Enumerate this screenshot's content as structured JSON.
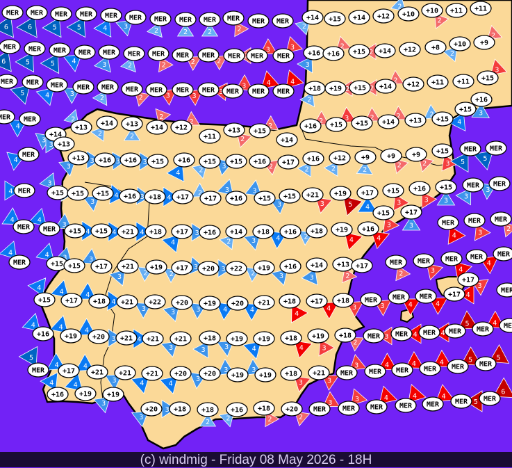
{
  "footer": {
    "credit": "(c) windmig - Friday 08 May 2026 - 18H"
  },
  "colors": {
    "sea": "#7222f6",
    "land": "#fbd998",
    "coast": "#000000",
    "blue": {
      "2": "#66aef4",
      "3": "#3d94ec",
      "4": "#0a7af4",
      "5": "#0064c4",
      "6": "#0058b0"
    },
    "red": {
      "2": "#f46a6a",
      "3": "#f43c3c",
      "4": "#f40000",
      "5": "#c40000",
      "6": "#c40000"
    }
  },
  "legend_note": {
    "sea_label": "MER"
  },
  "stations": [
    [
      "MER",
      6,
      "blue"
    ],
    [
      "MER",
      6,
      "blue"
    ],
    [
      "MER",
      5,
      "blue"
    ],
    [
      "MER",
      5,
      "blue"
    ],
    [
      "MER",
      4,
      "blue"
    ],
    [
      "MER",
      3,
      "blue"
    ],
    [
      "MER",
      2,
      "blue"
    ],
    [
      "MER",
      2,
      "blue"
    ],
    [
      "MER",
      2,
      "blue"
    ],
    [
      "MER",
      2,
      "red"
    ],
    [
      "MER",
      null,
      null
    ],
    [
      "MER",
      null,
      null
    ],
    [
      "+14",
      2,
      "blue"
    ],
    [
      "+15",
      null,
      null
    ],
    [
      "+14",
      null,
      null
    ],
    [
      "+12",
      null,
      null
    ],
    [
      "+10",
      2,
      "blue"
    ],
    [
      "+10",
      2,
      "red"
    ],
    [
      "+11",
      null,
      null
    ],
    [
      "+11",
      null,
      null
    ],
    [
      "MER",
      6,
      "blue"
    ],
    [
      "MER",
      5,
      "blue"
    ],
    [
      "MER",
      5,
      "blue"
    ],
    [
      "MER",
      4,
      "blue"
    ],
    [
      "MER",
      3,
      "blue"
    ],
    [
      "MER",
      2,
      "blue"
    ],
    [
      "MER",
      2,
      "red"
    ],
    [
      "MER",
      2,
      "red"
    ],
    [
      "MER",
      2,
      "red"
    ],
    [
      "MER",
      2,
      "red"
    ],
    [
      "MER",
      3,
      "red"
    ],
    [
      "MER",
      3,
      "red"
    ],
    [
      "+16",
      3,
      "blue"
    ],
    [
      "+16",
      2,
      "red"
    ],
    [
      "+15",
      2,
      "red"
    ],
    [
      "+14",
      null,
      null
    ],
    [
      "+12",
      null,
      null
    ],
    [
      "+8",
      null,
      null
    ],
    [
      "+10",
      2,
      "blue"
    ],
    [
      "+9",
      2,
      "red"
    ],
    [
      "MER",
      null,
      null
    ],
    [
      "MER",
      5,
      "blue"
    ],
    [
      "MER",
      4,
      "blue"
    ],
    [
      "MER",
      3,
      "blue"
    ],
    [
      "MER",
      2,
      "blue"
    ],
    [
      "MER",
      2,
      "red"
    ],
    [
      "MER",
      3,
      "red"
    ],
    [
      "MER",
      3,
      "red"
    ],
    [
      "MER",
      3,
      "red"
    ],
    [
      "MER",
      3,
      "red"
    ],
    [
      "MER",
      4,
      "red"
    ],
    [
      "MER",
      4,
      "red"
    ],
    [
      "+18",
      2,
      "blue"
    ],
    [
      "+19",
      2,
      "red"
    ],
    [
      "+15",
      2,
      "red"
    ],
    [
      "+14",
      2,
      "red"
    ],
    [
      "+12",
      null,
      null
    ],
    [
      "+11",
      null,
      null
    ],
    [
      "+11",
      null,
      null
    ],
    [
      "+15",
      3,
      "red"
    ],
    [
      "+16",
      3,
      "blue"
    ],
    [
      "MER",
      null,
      null
    ],
    [
      "MER",
      4,
      "blue"
    ],
    [
      "+13",
      2,
      "blue"
    ],
    [
      "+14",
      3,
      "blue"
    ],
    [
      "+13",
      3,
      "blue"
    ],
    [
      "+14",
      2,
      "blue"
    ],
    [
      "+13",
      2,
      "blue"
    ],
    [
      "+14",
      2,
      "red"
    ],
    [
      "+12",
      2,
      "red"
    ],
    [
      "+11",
      null,
      null
    ],
    [
      "+13",
      2,
      "red"
    ],
    [
      "+15",
      2,
      "red"
    ],
    [
      "+14",
      null,
      null
    ],
    [
      "+16",
      2,
      "red"
    ],
    [
      "+15",
      3,
      "red"
    ],
    [
      "+15",
      2,
      "red"
    ],
    [
      "+14",
      2,
      "red"
    ],
    [
      "+13",
      null,
      null
    ],
    [
      "+15",
      2,
      "blue"
    ],
    [
      "+15",
      4,
      "blue"
    ],
    [
      "MER",
      4,
      "blue"
    ],
    [
      "+13",
      3,
      "blue"
    ],
    [
      "+16",
      3,
      "blue"
    ],
    [
      "+16",
      3,
      "blue"
    ],
    [
      "+15",
      3,
      "blue"
    ],
    [
      "+16",
      4,
      "blue"
    ],
    [
      "+15",
      2,
      "blue"
    ],
    [
      "+15",
      3,
      "blue"
    ],
    [
      "+16",
      2,
      "red"
    ],
    [
      "+17",
      null,
      null
    ],
    [
      "+16",
      2,
      "blue"
    ],
    [
      "+12",
      2,
      "blue"
    ],
    [
      "+9",
      2,
      "blue"
    ],
    [
      "+9",
      2,
      "red"
    ],
    [
      "+9",
      2,
      "red"
    ],
    [
      "+15",
      3,
      "red"
    ],
    [
      "MER",
      5,
      "blue"
    ],
    [
      "MER",
      5,
      "blue"
    ],
    [
      "MER",
      4,
      "blue"
    ],
    [
      "+15",
      3,
      "blue"
    ],
    [
      "+15",
      2,
      "blue"
    ],
    [
      "+15",
      3,
      "blue"
    ],
    [
      "+16",
      4,
      "blue"
    ],
    [
      "+18",
      3,
      "blue"
    ],
    [
      "+17",
      4,
      "blue"
    ],
    [
      "+17",
      2,
      "blue"
    ],
    [
      "+16",
      3,
      "blue"
    ],
    [
      "+15",
      3,
      "blue"
    ],
    [
      "+15",
      3,
      "blue"
    ],
    [
      "+21",
      3,
      "red"
    ],
    [
      "+19",
      5,
      "red"
    ],
    [
      "+17",
      4,
      "blue"
    ],
    [
      "+15",
      3,
      "red"
    ],
    [
      "+16",
      3,
      "red"
    ],
    [
      "+15",
      3,
      "blue"
    ],
    [
      "MER",
      3,
      "blue"
    ],
    [
      "MER",
      3,
      "blue"
    ],
    [
      "+15",
      3,
      "red"
    ],
    [
      "+17",
      3,
      "blue"
    ],
    [
      "MER",
      4,
      "red"
    ],
    [
      "MER",
      3,
      "red"
    ],
    [
      "MER",
      2,
      "red"
    ],
    [
      "MER",
      4,
      "blue"
    ],
    [
      "MER",
      4,
      "blue"
    ],
    [
      "+15",
      3,
      "blue"
    ],
    [
      "+15",
      4,
      "blue"
    ],
    [
      "+21",
      4,
      "blue"
    ],
    [
      "+18",
      4,
      "blue"
    ],
    [
      "+17",
      4,
      "blue"
    ],
    [
      "+16",
      3,
      "blue"
    ],
    [
      "+14",
      2,
      "blue"
    ],
    [
      "+18",
      3,
      "blue"
    ],
    [
      "+16",
      4,
      "blue"
    ],
    [
      "+18",
      2,
      "blue"
    ],
    [
      "+19",
      4,
      "red"
    ],
    [
      "+16",
      4,
      "red"
    ],
    [
      "MER",
      4,
      "blue"
    ],
    [
      "+15",
      4,
      "blue"
    ],
    [
      "+15",
      3,
      "blue"
    ],
    [
      "+17",
      3,
      "blue"
    ],
    [
      "+21",
      3,
      "blue"
    ],
    [
      "+19",
      2,
      "blue"
    ],
    [
      "+17",
      2,
      "blue"
    ],
    [
      "+20",
      3,
      "blue"
    ],
    [
      "+22",
      3,
      "blue"
    ],
    [
      "+19",
      2,
      "blue"
    ],
    [
      "+16",
      3,
      "blue"
    ],
    [
      "+14",
      3,
      "blue"
    ],
    [
      "+13",
      2,
      "red"
    ],
    [
      "+17",
      null,
      null
    ],
    [
      "MER",
      2,
      "red"
    ],
    [
      "MER",
      3,
      "red"
    ],
    [
      "MER",
      4,
      "red"
    ],
    [
      "MER",
      4,
      "red"
    ],
    [
      "MER",
      null,
      null
    ],
    [
      "+15",
      4,
      "blue"
    ],
    [
      "+17",
      4,
      "blue"
    ],
    [
      "+18",
      4,
      "blue"
    ],
    [
      "+21",
      4,
      "blue"
    ],
    [
      "+22",
      3,
      "blue"
    ],
    [
      "+20",
      3,
      "blue"
    ],
    [
      "+19",
      3,
      "blue"
    ],
    [
      "+20",
      4,
      "blue"
    ],
    [
      "+21",
      4,
      "blue"
    ],
    [
      "+18",
      4,
      "red"
    ],
    [
      "+17",
      4,
      "red"
    ],
    [
      "+18",
      3,
      "red"
    ],
    [
      "MER",
      3,
      "red"
    ],
    [
      "MER",
      4,
      "red"
    ],
    [
      "MER",
      4,
      "red"
    ],
    [
      "+17",
      4,
      "red"
    ],
    [
      "+17",
      3,
      "red"
    ],
    [
      "MER",
      null,
      null
    ],
    [
      "+16",
      4,
      "blue"
    ],
    [
      "+19",
      4,
      "blue"
    ],
    [
      "+20",
      4,
      "blue"
    ],
    [
      "+21",
      3,
      "blue"
    ],
    [
      "+21",
      4,
      "blue"
    ],
    [
      "+21",
      3,
      "blue"
    ],
    [
      "+18",
      3,
      "blue"
    ],
    [
      "+19",
      3,
      "blue"
    ],
    [
      "+19",
      4,
      "blue"
    ],
    [
      "+18",
      4,
      "red"
    ],
    [
      "+19",
      3,
      "red"
    ],
    [
      "+18",
      2,
      "red"
    ],
    [
      "MER",
      3,
      "red"
    ],
    [
      "MER",
      4,
      "red"
    ],
    [
      "MER",
      4,
      "red"
    ],
    [
      "MER",
      5,
      "red"
    ],
    [
      "MER",
      4,
      "red"
    ],
    [
      "MER",
      null,
      null
    ],
    [
      "MER",
      5,
      "blue"
    ],
    [
      "+17",
      4,
      "blue"
    ],
    [
      "+21",
      4,
      "blue"
    ],
    [
      "+21",
      3,
      "blue"
    ],
    [
      "+21",
      4,
      "blue"
    ],
    [
      "+20",
      4,
      "blue"
    ],
    [
      "+20",
      3,
      "blue"
    ],
    [
      "+19",
      3,
      "blue"
    ],
    [
      "+19",
      3,
      "blue"
    ],
    [
      "+18",
      3,
      "red"
    ],
    [
      "+21",
      3,
      "red"
    ],
    [
      "MER",
      3,
      "red"
    ],
    [
      "MER",
      4,
      "red"
    ],
    [
      "MER",
      4,
      "red"
    ],
    [
      "MER",
      4,
      "red"
    ],
    [
      "MER",
      5,
      "red"
    ],
    [
      "MER",
      5,
      "red"
    ],
    [
      "+16",
      4,
      "blue"
    ],
    [
      "+19",
      4,
      "blue"
    ],
    [
      "+19",
      3,
      "blue"
    ],
    [
      "+20",
      3,
      "blue"
    ],
    [
      "+18",
      3,
      "blue"
    ],
    [
      "+18",
      2,
      "blue"
    ],
    [
      "+16",
      2,
      "blue"
    ],
    [
      "+18",
      2,
      "red"
    ],
    [
      "+20",
      2,
      "red"
    ],
    [
      "MER",
      3,
      "red"
    ],
    [
      "MER",
      3,
      "red"
    ],
    [
      "MER",
      4,
      "red"
    ],
    [
      "MER",
      4,
      "red"
    ],
    [
      "MER",
      4,
      "red"
    ],
    [
      "MER",
      5,
      "red"
    ],
    [
      "MER",
      6,
      "red"
    ]
  ]
}
